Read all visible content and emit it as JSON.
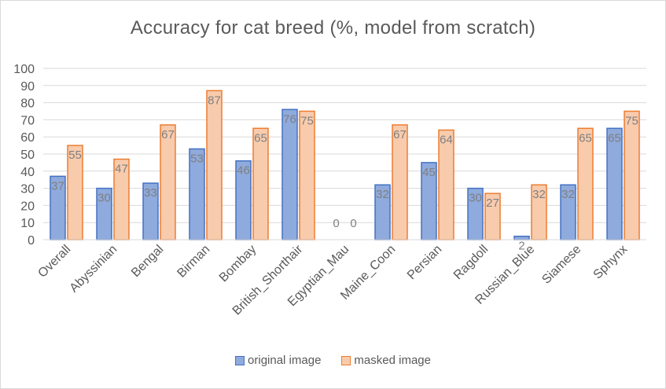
{
  "chart_data": {
    "type": "bar",
    "title": "Accuracy for cat breed (%, model from scratch)",
    "categories": [
      "Overall",
      "Abyssinian",
      "Bengal",
      "Birman",
      "Bombay",
      "British_Shorthair",
      "Egyptian_Mau",
      "Maine_Coon",
      "Persian",
      "Ragdoll",
      "Russian_Blue",
      "Siamese",
      "Sphynx"
    ],
    "series": [
      {
        "name": "original image",
        "values": [
          37,
          30,
          33,
          53,
          46,
          76,
          0,
          32,
          45,
          30,
          2,
          32,
          65
        ],
        "color": "#8faadc",
        "stroke": "#4472c4"
      },
      {
        "name": "masked image",
        "values": [
          55,
          47,
          67,
          87,
          65,
          75,
          0,
          67,
          64,
          27,
          32,
          65,
          75
        ],
        "color": "#f8cbad",
        "stroke": "#ed7d31"
      }
    ],
    "ylim": [
      0,
      100
    ],
    "yticks": [
      0,
      10,
      20,
      30,
      40,
      50,
      60,
      70,
      80,
      90,
      100
    ],
    "grid": true,
    "legend_position": "bottom"
  }
}
